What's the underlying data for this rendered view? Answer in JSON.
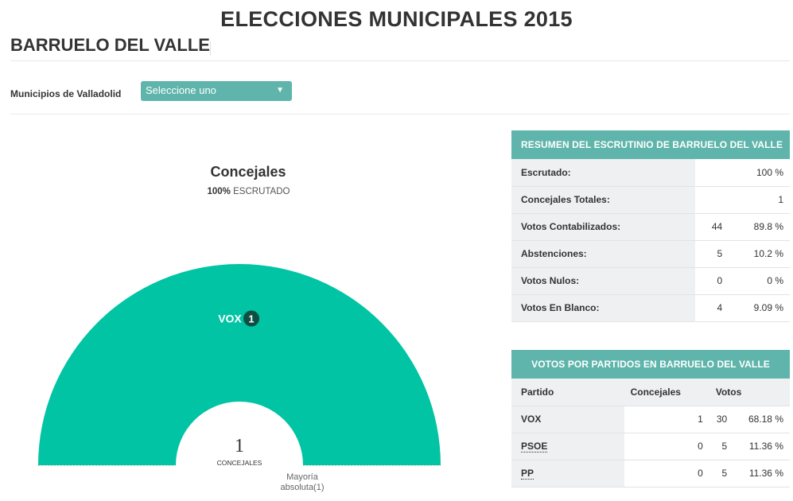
{
  "page": {
    "title": "ELECCIONES MUNICIPALES 2015",
    "town": "BARRUELO DEL VALLE"
  },
  "filter": {
    "label": "Municipios de Valladolid",
    "selected": "Seleccione uno"
  },
  "chart": {
    "title": "Concejales",
    "scrutinized_pct": "100%",
    "scrutinized_label": "ESCRUTADO",
    "total_seats": "1",
    "total_seats_label": "CONCEJALES",
    "majority_line1": "Mayoría",
    "majority_line2": "absoluta(1)"
  },
  "chart_data": {
    "type": "hemicycle",
    "series": [
      {
        "name": "VOX",
        "seats": 1,
        "color": "#00c4a4",
        "badge_color": "#0e4f44"
      }
    ]
  },
  "summary": {
    "heading": "RESUMEN DEL ESCRUTINIO DE BARRUELO DEL VALLE",
    "rows": [
      {
        "label": "Escrutado:",
        "count": "",
        "pct": "100 %"
      },
      {
        "label": "Concejales Totales:",
        "count": "",
        "pct": "1"
      },
      {
        "label": "Votos Contabilizados:",
        "count": "44",
        "pct": "89.8 %"
      },
      {
        "label": "Abstenciones:",
        "count": "5",
        "pct": "10.2 %"
      },
      {
        "label": "Votos Nulos:",
        "count": "0",
        "pct": "0 %"
      },
      {
        "label": "Votos En Blanco:",
        "count": "4",
        "pct": "9.09 %"
      }
    ]
  },
  "parties": {
    "heading": "VOTOS POR PARTIDOS EN BARRUELO DEL VALLE",
    "columns": [
      "Partido",
      "Concejales",
      "Votos"
    ],
    "rows": [
      {
        "name": "VOX",
        "seats": "1",
        "votes": "30",
        "pct": "68.18 %"
      },
      {
        "name": "PSOE",
        "seats": "0",
        "votes": "5",
        "pct": "11.36 %"
      },
      {
        "name": "PP",
        "seats": "0",
        "votes": "5",
        "pct": "11.36 %"
      }
    ]
  },
  "colors": {
    "accent": "#5fb5ab",
    "vox": "#00c4a4"
  }
}
